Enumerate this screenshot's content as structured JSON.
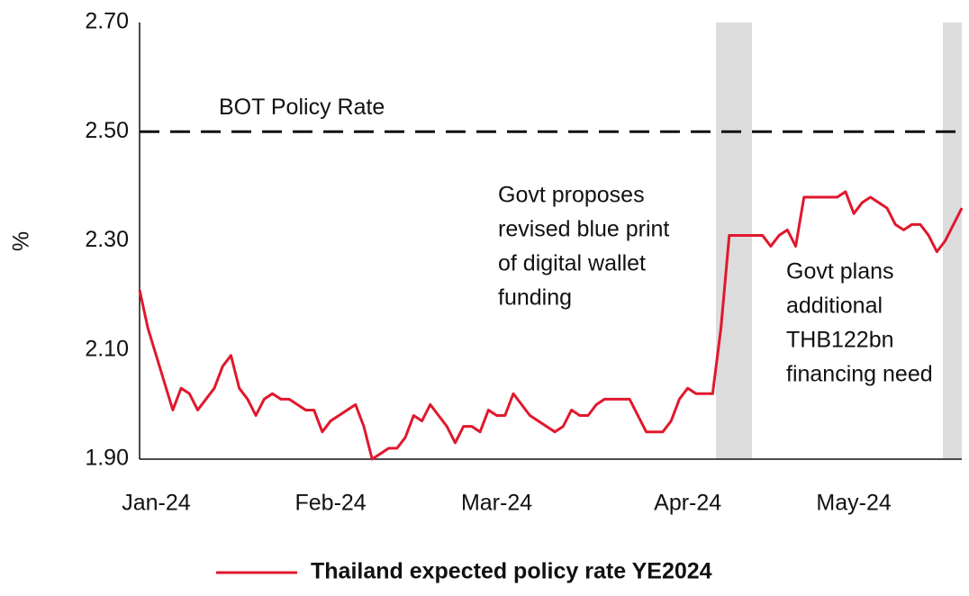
{
  "chart_data": {
    "type": "line",
    "y_label": "%",
    "ylim": [
      1.9,
      2.7
    ],
    "yticks": [
      {
        "value": 1.9,
        "label": "1.90"
      },
      {
        "value": 2.1,
        "label": "2.10"
      },
      {
        "value": 2.3,
        "label": "2.30"
      },
      {
        "value": 2.5,
        "label": "2.50"
      },
      {
        "value": 2.7,
        "label": "2.70"
      }
    ],
    "categories": [
      null,
      null,
      "Jan-24",
      null,
      null,
      null,
      null,
      null,
      null,
      null,
      null,
      null,
      null,
      null,
      null,
      null,
      null,
      null,
      null,
      null,
      null,
      null,
      null,
      "Feb-24",
      null,
      null,
      null,
      null,
      null,
      null,
      null,
      null,
      null,
      null,
      null,
      null,
      null,
      null,
      null,
      null,
      null,
      null,
      null,
      "Mar-24",
      null,
      null,
      null,
      null,
      null,
      null,
      null,
      null,
      null,
      null,
      null,
      null,
      null,
      null,
      null,
      null,
      null,
      null,
      null,
      null,
      null,
      null,
      "Apr-24",
      null,
      null,
      null,
      null,
      null,
      null,
      null,
      null,
      null,
      null,
      null,
      null,
      null,
      null,
      null,
      null,
      null,
      null,
      null,
      "May-24",
      null,
      null,
      null,
      null,
      null,
      null,
      null,
      null,
      null,
      null,
      null,
      null,
      null
    ],
    "series": [
      {
        "name": "Thailand expected policy rate YE2024",
        "color": "#e0182d",
        "values": [
          2.21,
          2.14,
          2.09,
          2.04,
          1.99,
          2.03,
          2.02,
          1.99,
          2.01,
          2.03,
          2.07,
          2.09,
          2.03,
          2.01,
          1.98,
          2.01,
          2.02,
          2.01,
          2.01,
          2.0,
          1.99,
          1.99,
          1.95,
          1.97,
          1.98,
          1.99,
          2.0,
          1.96,
          1.9,
          1.91,
          1.92,
          1.92,
          1.94,
          1.98,
          1.97,
          2.0,
          1.98,
          1.96,
          1.93,
          1.96,
          1.96,
          1.95,
          1.99,
          1.98,
          1.98,
          2.02,
          2.0,
          1.98,
          1.97,
          1.96,
          1.95,
          1.96,
          1.99,
          1.98,
          1.98,
          2.0,
          2.01,
          2.01,
          2.01,
          2.01,
          1.98,
          1.95,
          1.95,
          1.95,
          1.97,
          2.01,
          2.03,
          2.02,
          2.02,
          2.02,
          2.14,
          2.31,
          2.31,
          2.31,
          2.31,
          2.31,
          2.29,
          2.31,
          2.32,
          2.29,
          2.38,
          2.38,
          2.38,
          2.38,
          2.38,
          2.39,
          2.35,
          2.37,
          2.38,
          2.37,
          2.36,
          2.33,
          2.32,
          2.33,
          2.33,
          2.31,
          2.28,
          2.3,
          2.33,
          2.36
        ]
      }
    ],
    "reference_lines": [
      {
        "value": 2.5,
        "label": "BOT Policy Rate",
        "color": "#111111"
      }
    ],
    "annotations": [
      {
        "lines": [
          "Govt proposes",
          "revised blue print",
          "of digital wallet",
          "funding"
        ]
      },
      {
        "lines": [
          "Govt plans",
          "additional",
          "THB122bn",
          "financing need"
        ]
      }
    ]
  }
}
